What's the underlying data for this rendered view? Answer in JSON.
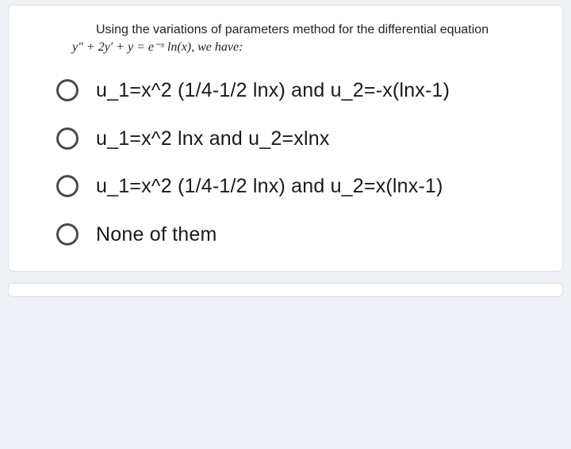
{
  "question": {
    "line1": "Using the variations of parameters method for the differential equation",
    "line2_html": "y″ + 2y′ + y  =  e⁻ˣ ln(x), we have:"
  },
  "options": [
    {
      "text": "u_1=x^2 (1/4-1/2 lnx) and u_2=-x(lnx-1)"
    },
    {
      "text": "u_1=x^2 lnx and u_2=xlnx"
    },
    {
      "text": "u_1=x^2 (1/4-1/2 lnx) and u_2=x(lnx-1)"
    },
    {
      "text": "None of them"
    }
  ],
  "styling": {
    "background_color": "#eef1f5",
    "card_background": "#ffffff",
    "card_border": "#dbe0e6",
    "card_border_radius": 6,
    "question_fontsize": 16,
    "option_fontsize": 25,
    "option_color": "#1a1a1a",
    "radio_size": 28,
    "radio_border_color": "#4a4a4a",
    "radio_border_width": 3,
    "option_gap": 28
  }
}
